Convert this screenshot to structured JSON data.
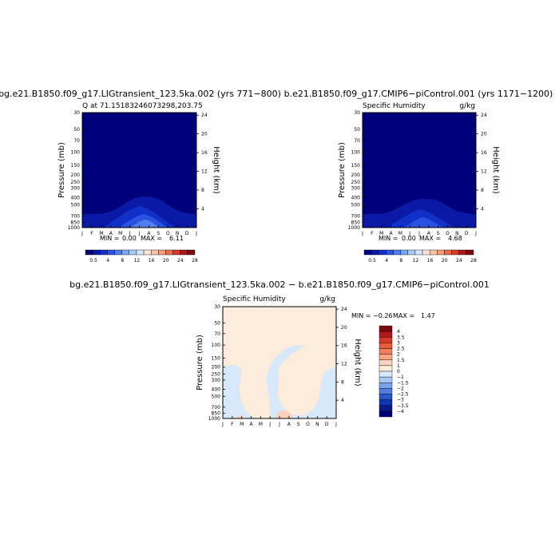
{
  "chart_data": [
    {
      "type": "heatmap",
      "title": "bg.e21.B1850.f09_g17.LIGtransient_123.5ka.002 (yrs 771−800)",
      "subtitle_left": "Q at 71.15183246073298,203.75",
      "subtitle_right": "",
      "ylabel": "Pressure (mb)",
      "ylabel_right": "Height (km)",
      "x_ticks": [
        "J",
        "F",
        "M",
        "A",
        "M",
        "J",
        "J",
        "A",
        "S",
        "O",
        "N",
        "D",
        "J"
      ],
      "y_ticks": [
        "30",
        "50",
        "70",
        "100",
        "150",
        "200",
        "250",
        "300",
        "400",
        "500",
        "700",
        "850",
        "1000"
      ],
      "height_ticks": [
        "24",
        "20",
        "16",
        "12",
        "8",
        "4"
      ],
      "min_label": "MIN =",
      "min_value": "0.00",
      "max_label": "MAX =",
      "max_value": "6.11",
      "colorbar_labels": [
        "0.5",
        "4",
        "8",
        "12",
        "16",
        "20",
        "24",
        "28"
      ],
      "field_max": 6.11,
      "field_min": 0.0
    },
    {
      "type": "heatmap",
      "title": "b.e21.B1850.f09_g17.CMIP6−piControl.001 (yrs 1171−1200)",
      "subtitle_left": "Specific Humidity",
      "subtitle_right": "g/kg",
      "ylabel": "Pressure (mb)",
      "ylabel_right": "Height (km)",
      "x_ticks": [
        "J",
        "F",
        "M",
        "A",
        "M",
        "J",
        "J",
        "A",
        "S",
        "O",
        "N",
        "D",
        "J"
      ],
      "y_ticks": [
        "30",
        "50",
        "70",
        "100",
        "150",
        "200",
        "250",
        "300",
        "400",
        "500",
        "700",
        "850",
        "1000"
      ],
      "height_ticks": [
        "24",
        "20",
        "16",
        "12",
        "8",
        "4"
      ],
      "min_label": "MIN =",
      "min_value": "0.00",
      "max_label": "MAX =",
      "max_value": "4.68",
      "colorbar_labels": [
        "0.5",
        "4",
        "8",
        "12",
        "16",
        "20",
        "24",
        "28"
      ],
      "field_max": 4.68,
      "field_min": 0.0
    },
    {
      "type": "heatmap",
      "title": "bg.e21.B1850.f09_g17.LIGtransient_123.5ka.002 − b.e21.B1850.f09_g17.CMIP6−piControl.001",
      "subtitle_left": "Specific Humidity",
      "subtitle_right": "g/kg",
      "ylabel": "Pressure (mb)",
      "ylabel_right": "Height (km)",
      "x_ticks": [
        "J",
        "F",
        "M",
        "A",
        "M",
        "J",
        "J",
        "A",
        "S",
        "O",
        "N",
        "D",
        "J"
      ],
      "y_ticks": [
        "30",
        "50",
        "70",
        "100",
        "150",
        "200",
        "250",
        "300",
        "400",
        "500",
        "700",
        "850",
        "1000"
      ],
      "height_ticks": [
        "24",
        "20",
        "16",
        "12",
        "8",
        "4"
      ],
      "min_label": "MIN =",
      "min_value": "−0.26",
      "max_label": "MAX =",
      "max_value": "1.47",
      "colorbar_labels": [
        "4",
        "3.5",
        "3",
        "2.5",
        "2",
        "1.5",
        "1",
        "0",
        "−1",
        "−1.5",
        "−2",
        "−2.5",
        "−3",
        "−3.5",
        "−4"
      ],
      "field_max": 1.47,
      "field_min": -0.26
    }
  ],
  "colors": {
    "seq": [
      "#00007a",
      "#0a1aa6",
      "#1030c8",
      "#2a52e0",
      "#4f7ef0",
      "#7aa6f6",
      "#a7c8fa",
      "#d4e6fb",
      "#fbe4d6",
      "#f9c3a8",
      "#f59c7c",
      "#ec6a4c",
      "#d8382a",
      "#b0161c",
      "#7a0a0e"
    ],
    "div": [
      "#7a0a0e",
      "#b0161c",
      "#d8382a",
      "#ec5a3e",
      "#f2805e",
      "#f7a583",
      "#fbd2bb",
      "#fdebdc",
      "#d6e8f9",
      "#a6c8f2",
      "#7aa3ea",
      "#4f7ee0",
      "#2a56cf",
      "#1034b4",
      "#0a1a8c",
      "#00007a"
    ]
  }
}
